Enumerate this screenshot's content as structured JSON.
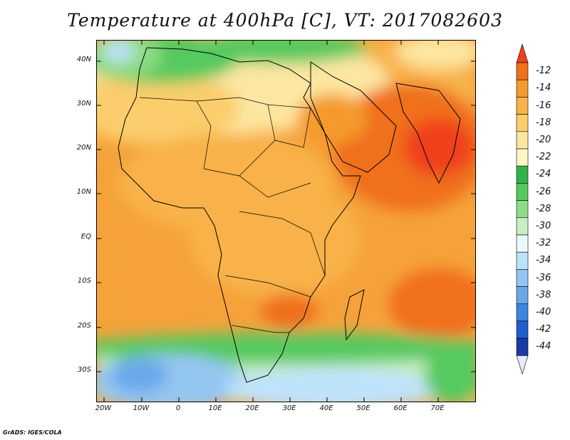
{
  "title": "Temperature at 400hPa [C], VT: 2017082603",
  "footer": "GrADS: IGES/COLA",
  "lat_ticks": [
    "40N",
    "30N",
    "20N",
    "10N",
    "EQ",
    "10S",
    "20S",
    "30S"
  ],
  "lon_ticks": [
    "20W",
    "10W",
    "0",
    "10E",
    "20E",
    "30E",
    "40E",
    "50E",
    "60E",
    "70E"
  ],
  "colorbar": {
    "labels": [
      "-12",
      "-14",
      "-16",
      "-18",
      "-20",
      "-22",
      "-24",
      "-26",
      "-28",
      "-30",
      "-32",
      "-34",
      "-36",
      "-38",
      "-40",
      "-42",
      "-44"
    ],
    "colors": [
      "#f0401a",
      "#f0701a",
      "#f59a2c",
      "#f8b24a",
      "#fbcd6c",
      "#fde6a0",
      "#fff6c8",
      "#2fb44a",
      "#56c95e",
      "#8edd86",
      "#c6f0c0",
      "#e8fafa",
      "#bfe2fb",
      "#94c6f2",
      "#6aa8ea",
      "#3d86e0",
      "#1e5fcc",
      "#1a3aa8",
      "#0c1a70"
    ]
  },
  "map_fields": {
    "ocean_default": "#f5a23a",
    "north_sahara": "#fde6a0",
    "mediterranean": "#56c95e",
    "arabia_hot": "#f0701a",
    "southern_cold": "#8edd86",
    "southern_cold2": "#bfe2fb"
  }
}
